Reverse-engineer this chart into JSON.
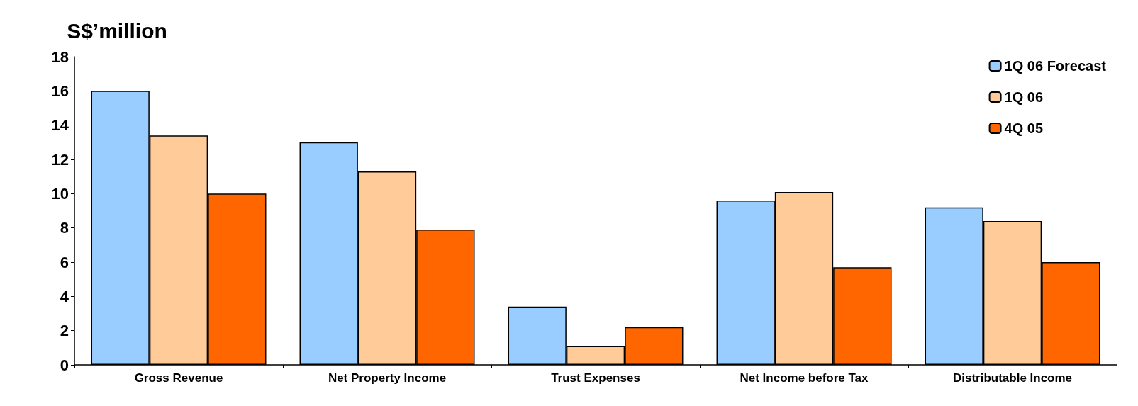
{
  "chart_data": {
    "type": "bar",
    "ylabel": "S$’million",
    "categories": [
      "Gross Revenue",
      "Net Property Income",
      "Trust Expenses",
      "Net Income before Tax",
      "Distributable Income"
    ],
    "series": [
      {
        "name": "1Q 06 Forecast",
        "color": "#99ccff",
        "values": [
          16.0,
          13.0,
          3.4,
          9.6,
          9.2
        ]
      },
      {
        "name": "1Q 06",
        "color": "#ffcc99",
        "values": [
          13.4,
          11.3,
          1.1,
          10.1,
          8.4
        ]
      },
      {
        "name": "4Q 05",
        "color": "#ff6600",
        "values": [
          10.0,
          7.9,
          2.2,
          5.7,
          6.0
        ]
      }
    ],
    "ylim": [
      0,
      18
    ],
    "yticks": [
      0,
      2,
      4,
      6,
      8,
      10,
      12,
      14,
      16,
      18
    ],
    "grid": false,
    "legend": "top right"
  }
}
